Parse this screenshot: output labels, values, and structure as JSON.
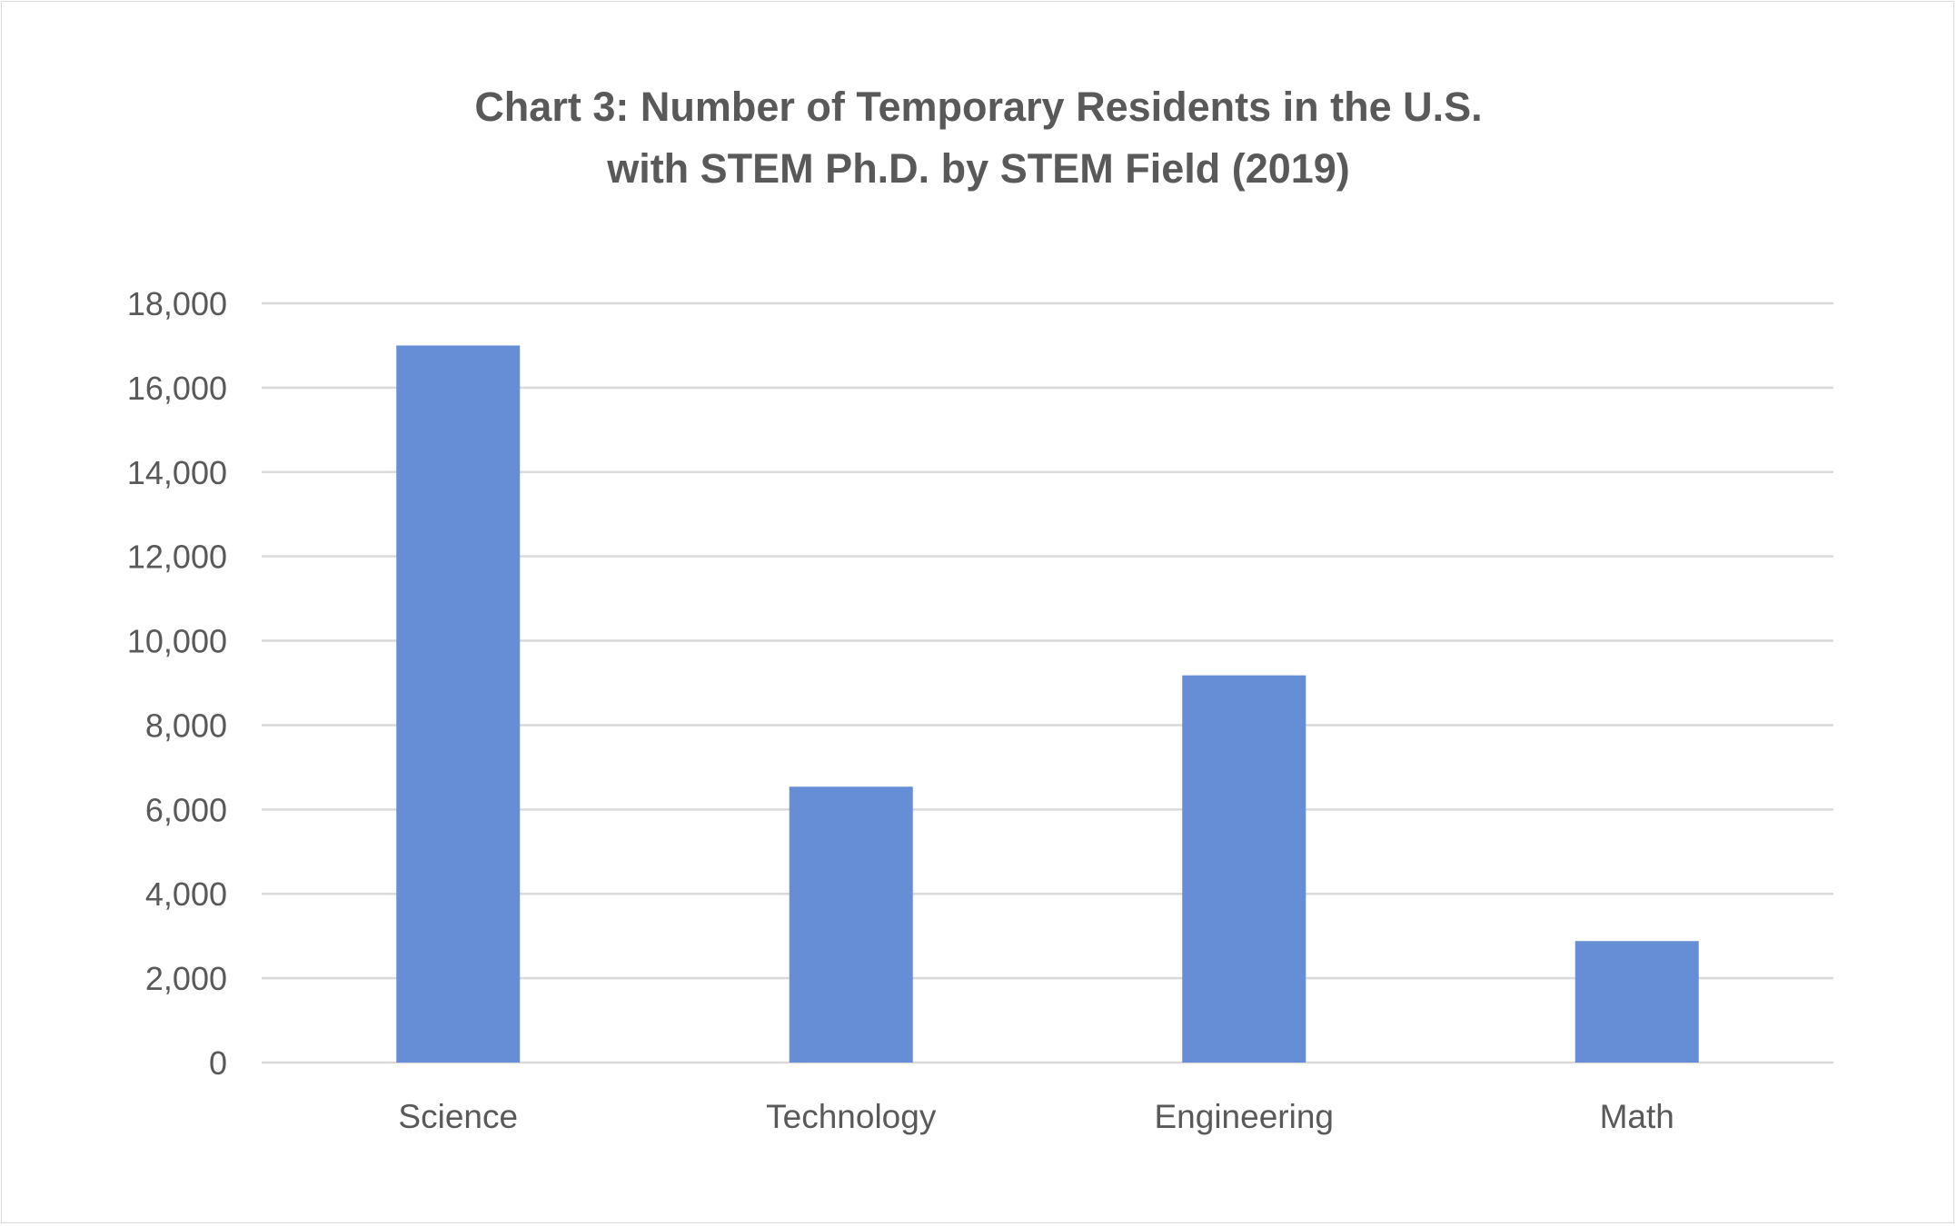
{
  "chart_data": {
    "type": "bar",
    "title": "Chart 3: Number of Temporary Residents in the U.S. with STEM Ph.D. by STEM Field (2019)",
    "title_lines": [
      "Chart 3: Number of Temporary Residents in the U.S.",
      "with STEM Ph.D. by STEM Field (2019)"
    ],
    "categories": [
      "Science",
      "Technology",
      "Engineering",
      "Math"
    ],
    "values": [
      17000,
      6540,
      9180,
      2880
    ],
    "xlabel": "",
    "ylabel": "",
    "ylim": [
      0,
      18000
    ],
    "yticks": [
      0,
      2000,
      4000,
      6000,
      8000,
      10000,
      12000,
      14000,
      16000,
      18000
    ],
    "ytick_labels": [
      "0",
      "2,000",
      "4,000",
      "6,000",
      "8,000",
      "10,000",
      "12,000",
      "14,000",
      "16,000",
      "18,000"
    ],
    "grid": true,
    "legend": "none",
    "bar_color": "#668ed6",
    "grid_color": "#d9d9d9"
  }
}
